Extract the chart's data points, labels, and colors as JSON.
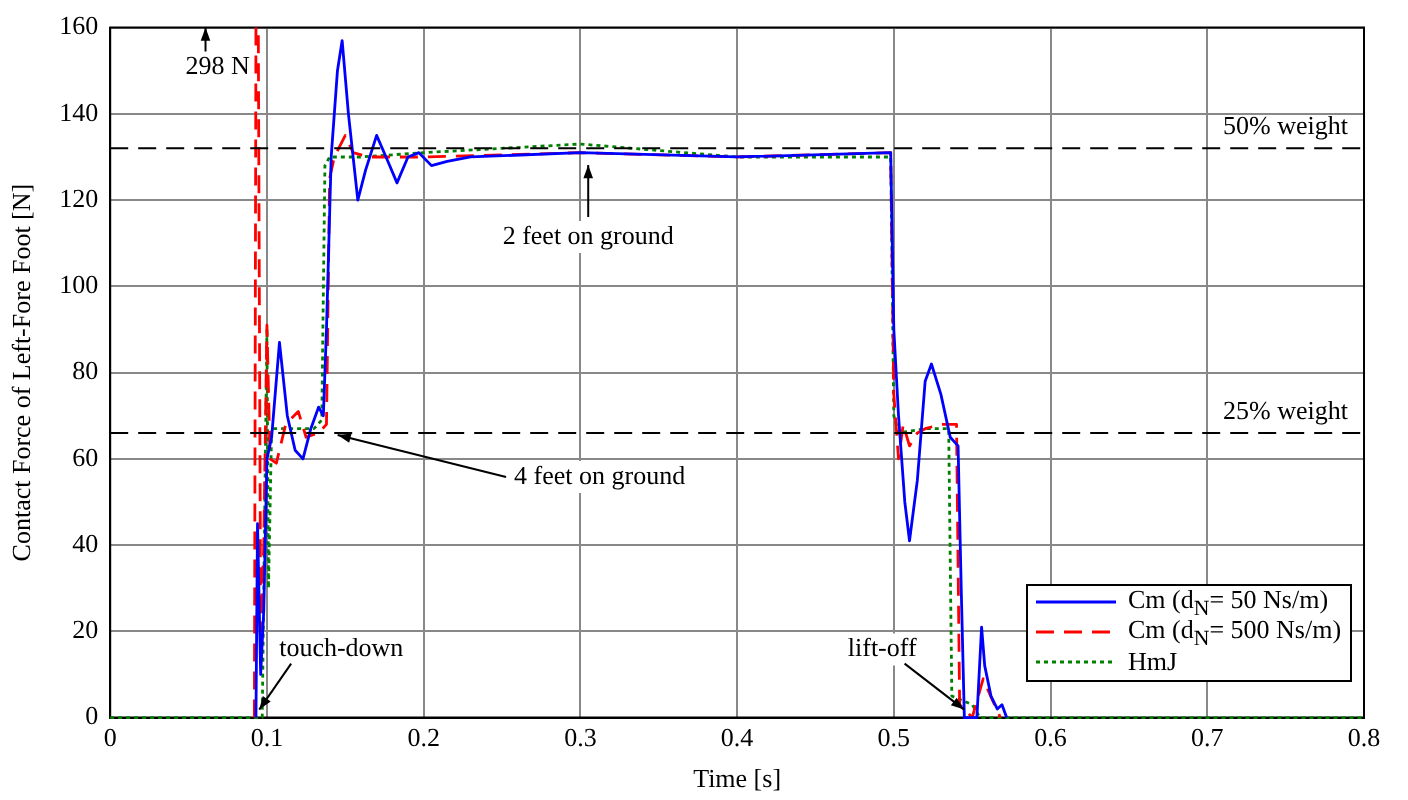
{
  "chart_data": {
    "type": "line",
    "xlabel": "Time [s]",
    "ylabel": "Contact Force of Left-Fore Foot [N]",
    "xlim": [
      0,
      0.8
    ],
    "xticks": [
      0,
      0.1,
      0.2,
      0.3,
      0.4,
      0.5,
      0.6,
      0.7,
      0.8
    ],
    "ylim": [
      0,
      160
    ],
    "yticks": [
      0,
      20,
      40,
      60,
      80,
      100,
      120,
      140,
      160
    ],
    "grid": true,
    "legend": "bottom right",
    "marker": "none",
    "series": [
      {
        "name": "Cm (d$_{N}$= 50 Ns/m)",
        "color": "#0000ff",
        "line_style": "solid",
        "x": [
          0.093,
          0.094,
          0.096,
          0.098,
          0.1,
          0.103,
          0.108,
          0.113,
          0.118,
          0.123,
          0.128,
          0.133,
          0.136,
          0.138,
          0.141,
          0.145,
          0.148,
          0.152,
          0.158,
          0.163,
          0.17,
          0.176,
          0.183,
          0.19,
          0.197,
          0.205,
          0.215,
          0.23,
          0.3,
          0.4,
          0.498,
          0.5,
          0.503,
          0.507,
          0.51,
          0.515,
          0.52,
          0.524,
          0.53,
          0.536,
          0.541,
          0.543,
          0.545,
          0.553,
          0.556,
          0.558,
          0.562,
          0.566,
          0.569,
          0.572
        ],
        "values": [
          0,
          45,
          10,
          25,
          60,
          65,
          87,
          70,
          62,
          60,
          67,
          72,
          70,
          90,
          130,
          150,
          157,
          140,
          120,
          127,
          135,
          130,
          124,
          130,
          131,
          128,
          129,
          130,
          131,
          130,
          131,
          90,
          70,
          50,
          41,
          55,
          78,
          82,
          75,
          65,
          63,
          30,
          0,
          0,
          21,
          12,
          5,
          2,
          3,
          0
        ]
      },
      {
        "name": "Cm (d$_{N}$= 500 Ns/m)",
        "color": "#ff0000",
        "line_style": "dashed",
        "x": [
          0.092,
          0.093,
          0.0945,
          0.096,
          0.098,
          0.1,
          0.102,
          0.106,
          0.112,
          0.12,
          0.125,
          0.133,
          0.138,
          0.14,
          0.143,
          0.15,
          0.155,
          0.165,
          0.2,
          0.3,
          0.4,
          0.498,
          0.5,
          0.503,
          0.506,
          0.51,
          0.515,
          0.52,
          0.53,
          0.54,
          0.542,
          0.545,
          0.55,
          0.557,
          0.563,
          0.568
        ],
        "values": [
          0,
          160,
          160,
          20,
          40,
          91,
          60,
          59,
          68,
          71,
          65,
          66,
          68,
          125,
          130,
          135,
          131,
          130,
          130,
          131,
          130,
          131,
          75,
          60,
          68,
          63,
          66,
          67,
          68,
          68,
          3,
          2,
          0,
          9,
          4,
          0
        ]
      },
      {
        "name": "HmJ",
        "color": "#008000",
        "line_style": "dotted",
        "x": [
          0,
          0.097,
          0.1,
          0.101,
          0.103,
          0.11,
          0.13,
          0.135,
          0.137,
          0.14,
          0.16,
          0.2,
          0.3,
          0.4,
          0.498,
          0.5,
          0.503,
          0.52,
          0.535,
          0.537,
          0.55,
          0.555,
          0.8
        ],
        "values": [
          0,
          0,
          90,
          30,
          67,
          67,
          67,
          69,
          128,
          130,
          130,
          131,
          133,
          130,
          130,
          70,
          66,
          67,
          67,
          5,
          3,
          0,
          0
        ]
      }
    ],
    "ref_lines": [
      {
        "axis": "y",
        "value": 132,
        "label": "50% weight",
        "color": "#000000",
        "line_style": "dashed"
      },
      {
        "axis": "y",
        "value": 66,
        "label": "25% weight",
        "color": "#000000",
        "line_style": "dashed"
      }
    ],
    "annotations": [
      {
        "text": "298 N",
        "x": 0.094,
        "y": 160
      },
      {
        "text": "2 feet on ground",
        "x": 0.305,
        "y": 130
      },
      {
        "text": "4 feet on ground",
        "x": 0.14,
        "y": 66
      },
      {
        "text": "touch-down",
        "x": 0.09,
        "y": 0
      },
      {
        "text": "lift-off",
        "x": 0.55,
        "y": 0
      }
    ]
  }
}
